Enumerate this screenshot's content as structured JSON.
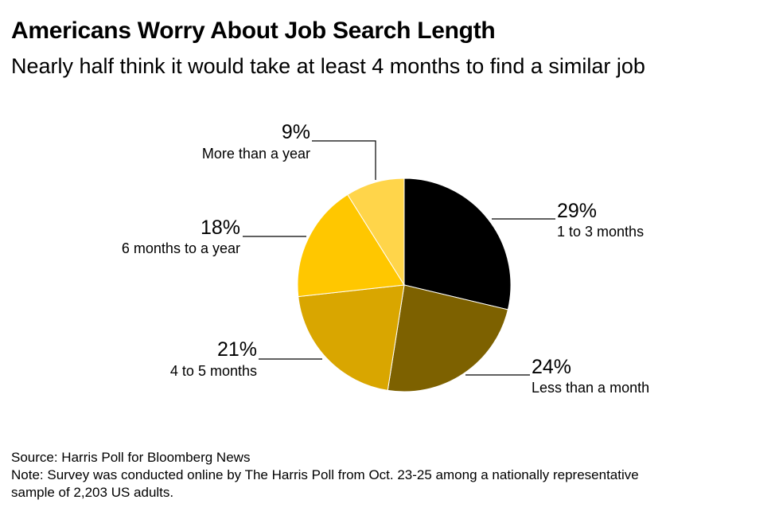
{
  "title": "Americans Worry About Job Search Length",
  "subtitle": "Nearly half think it would take at least 4 months to find a similar job",
  "chart_data": {
    "type": "pie",
    "slices": [
      {
        "label": "1 to 3 months",
        "value": 29,
        "value_label": "29%",
        "color": "#000000"
      },
      {
        "label": "Less than a month",
        "value": 24,
        "value_label": "24%",
        "color": "#7d6100"
      },
      {
        "label": "4 to 5 months",
        "value": 21,
        "value_label": "21%",
        "color": "#d9a600"
      },
      {
        "label": "6 months to a year",
        "value": 18,
        "value_label": "18%",
        "color": "#ffc700"
      },
      {
        "label": "More than a year",
        "value": 9,
        "value_label": "9%",
        "color": "#ffd54a"
      }
    ]
  },
  "footer": {
    "source": "Source: Harris Poll for Bloomberg News",
    "note_line1": "Note: Survey was conducted online by The Harris Poll from Oct. 23-25 among a nationally representative",
    "note_line2": "sample of 2,203 US adults."
  }
}
